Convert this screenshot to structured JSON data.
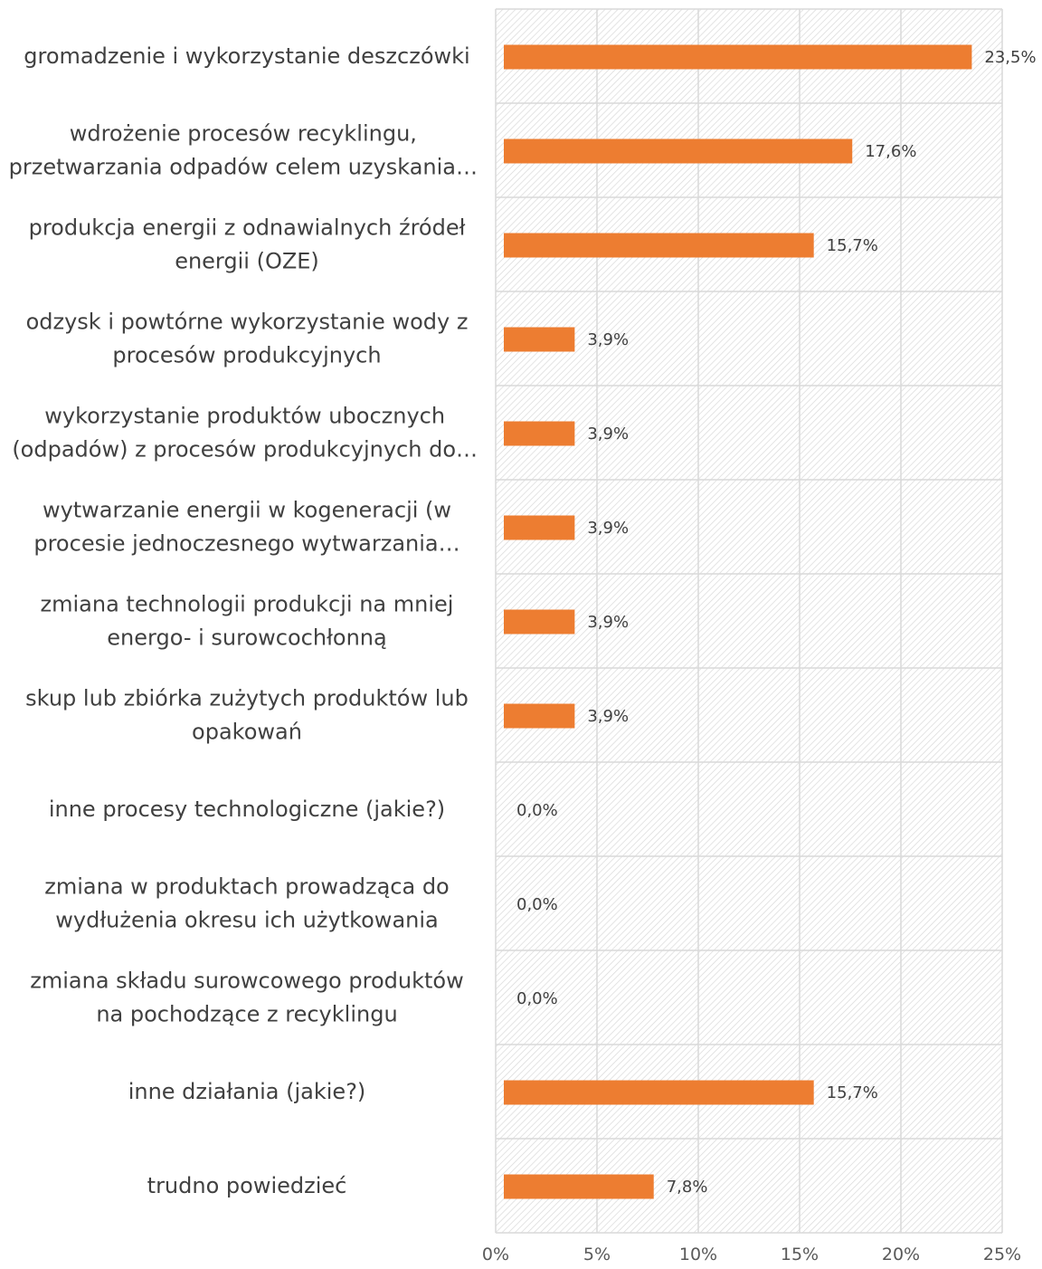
{
  "chart_data": {
    "type": "bar",
    "orientation": "horizontal",
    "title": "",
    "xlabel": "",
    "ylabel": "",
    "categories": [
      [
        "gromadzenie i wykorzystanie deszczówki"
      ],
      [
        "wdrożenie procesów recyklingu,",
        "przetwarzania odpadów celem uzyskania…"
      ],
      [
        "produkcja energii z odnawialnych źródeł",
        "energii (OZE)"
      ],
      [
        "odzysk i powtórne wykorzystanie wody z",
        "procesów produkcyjnych"
      ],
      [
        "wykorzystanie produktów ubocznych",
        "(odpadów) z procesów produkcyjnych do…"
      ],
      [
        "wytwarzanie energii w kogeneracji (w",
        "procesie jednoczesnego wytwarzania…"
      ],
      [
        "zmiana technologii produkcji na mniej",
        "energo- i surowcochłonną"
      ],
      [
        "skup lub zbiórka zużytych produktów lub",
        "opakowań"
      ],
      [
        "inne procesy technologiczne (jakie?)"
      ],
      [
        "zmiana w produktach prowadząca do",
        "wydłużenia okresu ich użytkowania"
      ],
      [
        "zmiana składu surowcowego produktów",
        "na pochodzące z recyklingu"
      ],
      [
        "inne działania (jakie?)"
      ],
      [
        "trudno powiedzieć"
      ]
    ],
    "values": [
      23.5,
      17.6,
      15.7,
      3.9,
      3.9,
      3.9,
      3.9,
      3.9,
      0.0,
      0.0,
      0.0,
      15.7,
      7.8
    ],
    "value_labels": [
      "23,5%",
      "17,6%",
      "15,7%",
      "3,9%",
      "3,9%",
      "3,9%",
      "3,9%",
      "3,9%",
      "0,0%",
      "0,0%",
      "0,0%",
      "15,7%",
      "7,8%"
    ],
    "xlim": [
      0,
      25
    ],
    "x_ticks": [
      0,
      5,
      10,
      15,
      20,
      25
    ],
    "x_tick_labels": [
      "0%",
      "5%",
      "10%",
      "15%",
      "20%",
      "25%"
    ],
    "grid": true,
    "legend": "none",
    "bar_color": "#ED7D31",
    "plot_background": "hatched-light-gray"
  }
}
